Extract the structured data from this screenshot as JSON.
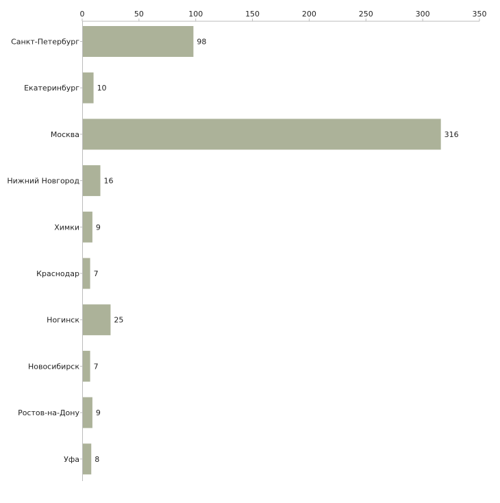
{
  "chart_data": {
    "type": "bar",
    "orientation": "horizontal",
    "title": "",
    "xlabel": "",
    "ylabel": "",
    "xlim": [
      0,
      350
    ],
    "ticks": [
      0,
      50,
      100,
      150,
      200,
      250,
      300,
      350
    ],
    "tick_labels": [
      "0",
      "50",
      "100",
      "150",
      "200",
      "250",
      "300",
      "350"
    ],
    "grid": false,
    "legend": "none",
    "categories": [
      "Санкт-Петербург",
      "Екатеринбург",
      "Москва",
      "Нижний Новгород",
      "Химки",
      "Краснодар",
      "Ногинск",
      "Новосибирск",
      "Ростов-на-Дону",
      "Уфа"
    ],
    "values": [
      98,
      10,
      316,
      16,
      9,
      7,
      25,
      7,
      9,
      8
    ],
    "value_labels": [
      "98",
      "10",
      "316",
      "16",
      "9",
      "7",
      "25",
      "7",
      "9",
      "8"
    ],
    "colors": {
      "bar": "#acb299",
      "axis": "#bbbbbb",
      "text": "#222222"
    }
  }
}
